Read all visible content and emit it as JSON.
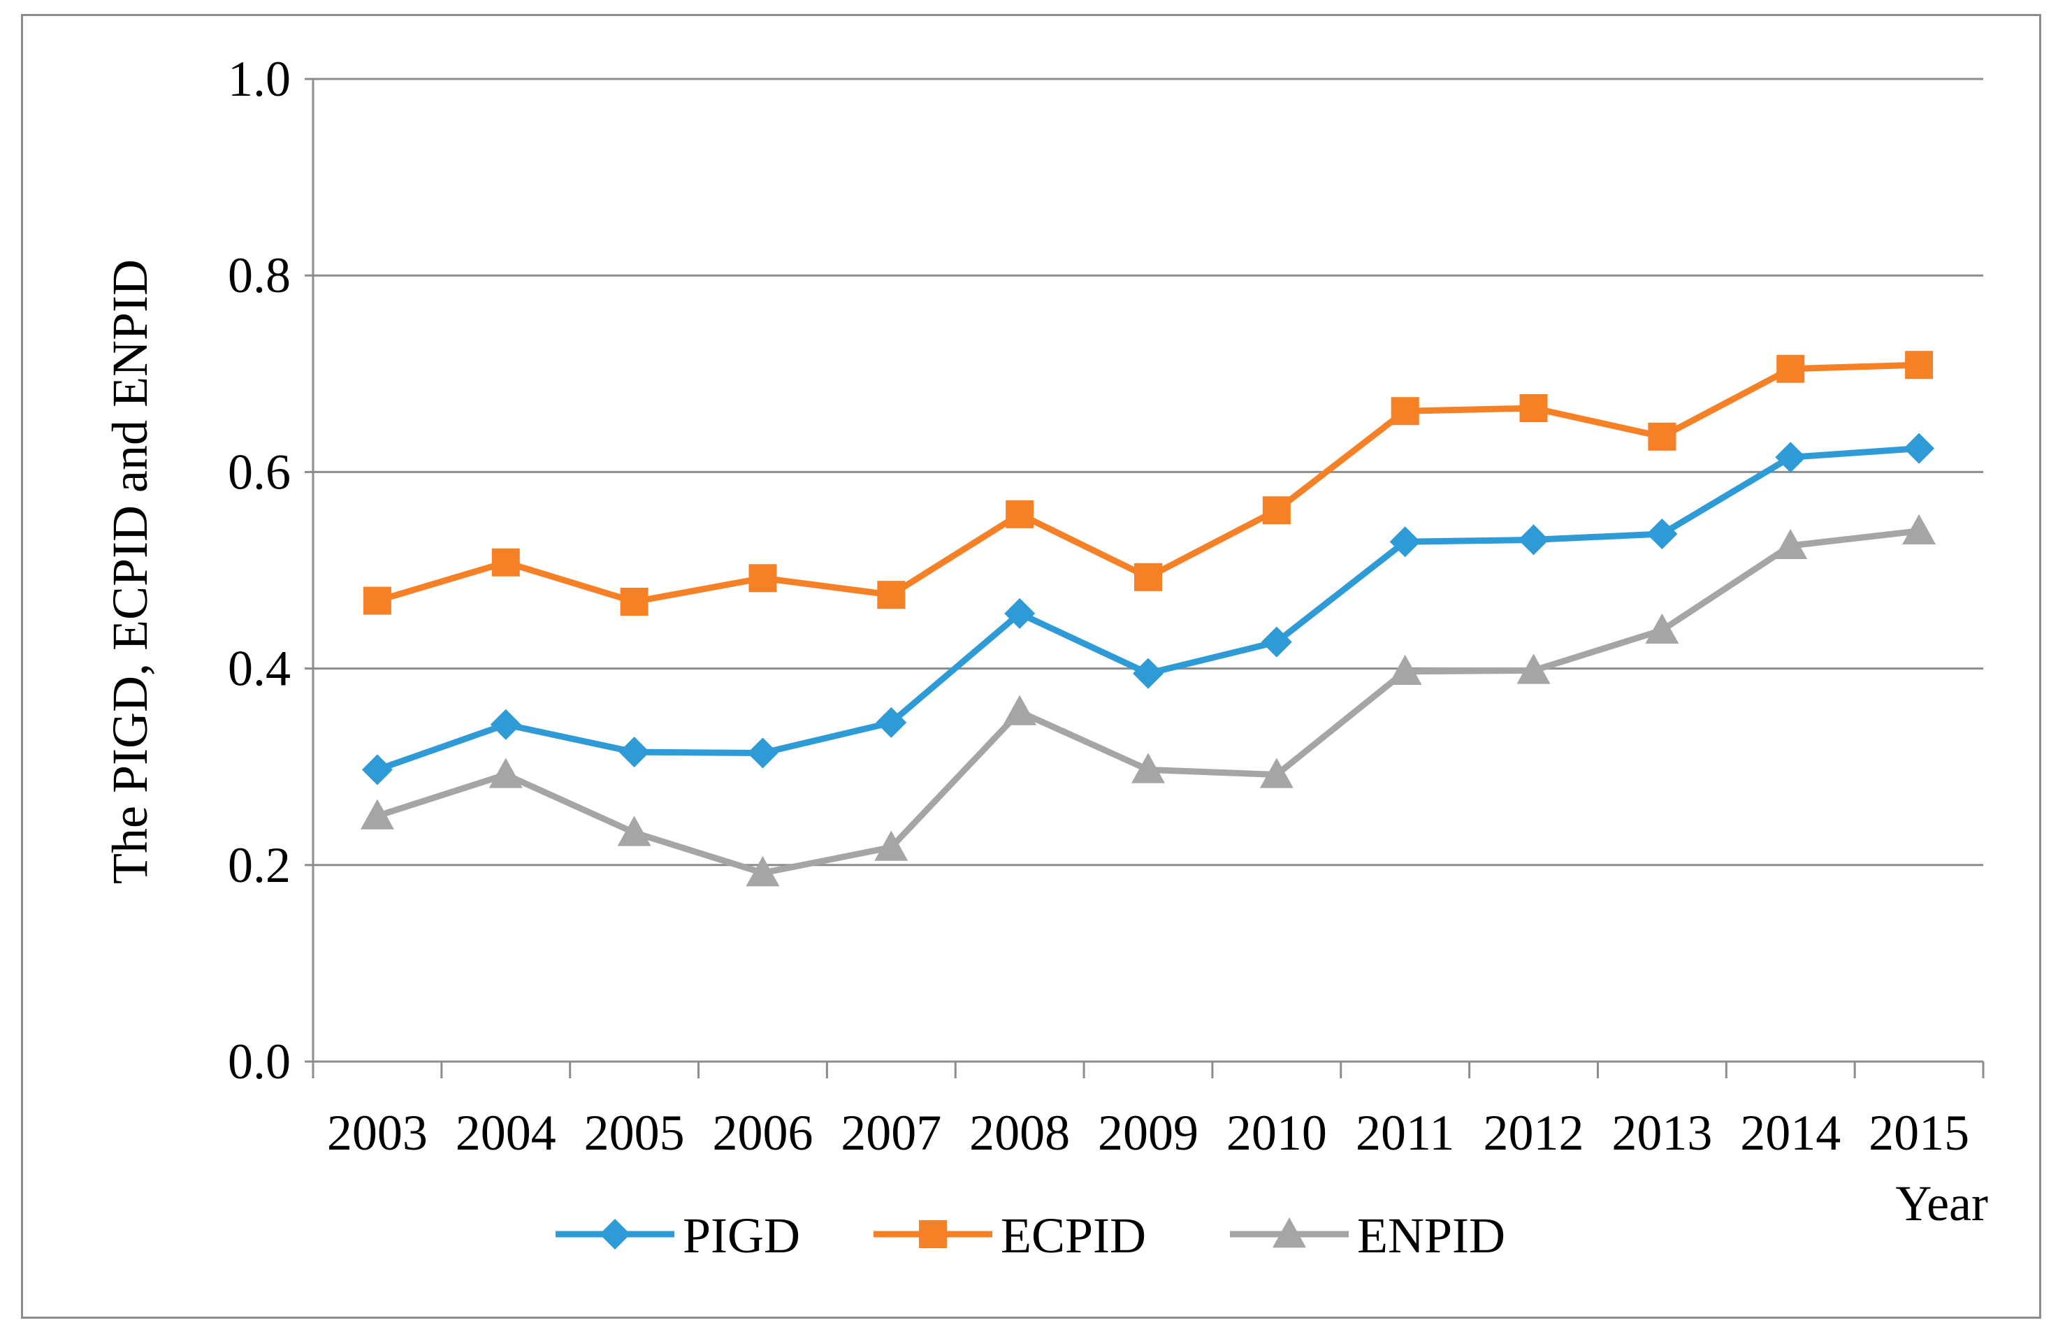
{
  "chart_data": {
    "type": "line",
    "title": "",
    "xlabel": "Year",
    "ylabel": "The PIGD, ECPID and ENPID",
    "ylim": [
      0.0,
      1.0
    ],
    "yticks": [
      "0.0",
      "0.2",
      "0.4",
      "0.6",
      "0.8",
      "1.0"
    ],
    "ytick_values": [
      0.0,
      0.2,
      0.4,
      0.6,
      0.8,
      1.0
    ],
    "grid": true,
    "legend_position": "bottom",
    "categories": [
      "2003",
      "2004",
      "2005",
      "2006",
      "2007",
      "2008",
      "2009",
      "2010",
      "2011",
      "2012",
      "2013",
      "2014",
      "2015"
    ],
    "series": [
      {
        "name": "PIGD",
        "color": "#2E9BD6",
        "marker": "diamond",
        "values": [
          0.297,
          0.343,
          0.315,
          0.314,
          0.345,
          0.456,
          0.395,
          0.427,
          0.529,
          0.531,
          0.537,
          0.615,
          0.624
        ]
      },
      {
        "name": "ECPID",
        "color": "#F58025",
        "marker": "square",
        "values": [
          0.469,
          0.508,
          0.468,
          0.492,
          0.475,
          0.557,
          0.493,
          0.561,
          0.662,
          0.665,
          0.636,
          0.705,
          0.709
        ]
      },
      {
        "name": "ENPID",
        "color": "#A5A5A5",
        "marker": "triangle",
        "values": [
          0.25,
          0.292,
          0.233,
          0.192,
          0.218,
          0.356,
          0.297,
          0.292,
          0.397,
          0.398,
          0.439,
          0.525,
          0.54
        ]
      }
    ]
  }
}
